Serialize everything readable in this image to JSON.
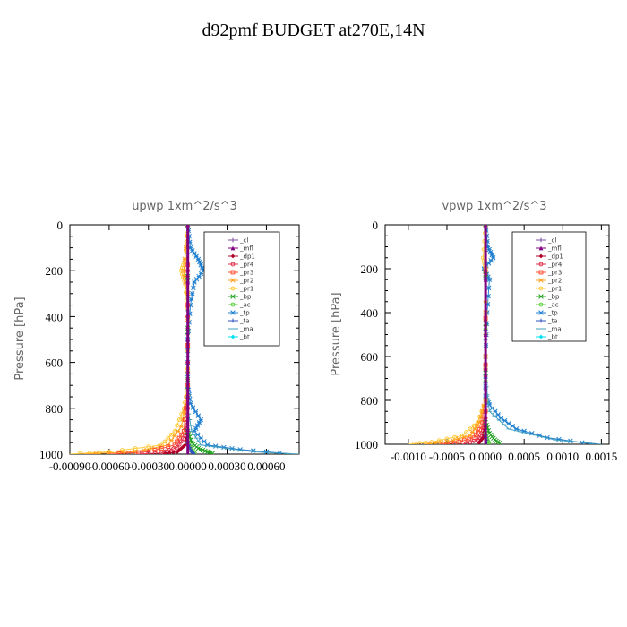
{
  "figure_title": "d92pmf  BUDGET at270E,14N",
  "legend_entries": [
    {
      "name": "_cl",
      "color": "#7b4fa0",
      "marker": "plus"
    },
    {
      "name": "_mfl",
      "color": "#800080",
      "marker": "triangle"
    },
    {
      "name": "_dp1",
      "color": "#b0002a",
      "marker": "diamond"
    },
    {
      "name": "_pr4",
      "color": "#e0304a",
      "marker": "circle"
    },
    {
      "name": "_pr3",
      "color": "#ff5030",
      "marker": "square"
    },
    {
      "name": "_pr2",
      "color": "#ffa020",
      "marker": "star"
    },
    {
      "name": "_pr1",
      "color": "#ffcc40",
      "marker": "circle"
    },
    {
      "name": "_bp",
      "color": "#20a020",
      "marker": "x"
    },
    {
      "name": "_ac",
      "color": "#60d040",
      "marker": "circle"
    },
    {
      "name": "_tp",
      "color": "#2080d0",
      "marker": "star"
    },
    {
      "name": "_ta",
      "color": "#3050c0",
      "marker": "plus"
    },
    {
      "name": "_ma",
      "color": "#40a0c0",
      "marker": "dash"
    },
    {
      "name": "_bt",
      "color": "#00e0f0",
      "marker": "diamond"
    }
  ],
  "chart_data": [
    {
      "type": "line",
      "title": "upwp   1xm^2/s^3",
      "ylabel": "Pressure  [hPa]",
      "xlabel": "",
      "ylim": [
        1000,
        0
      ],
      "xlim": [
        -0.0009,
        0.00085
      ],
      "y_ticks": [
        0,
        200,
        400,
        600,
        800,
        1000
      ],
      "x_ticks": [
        -0.0009,
        -0.0006,
        -0.0003,
        0.0,
        0.0003,
        0.0006
      ],
      "x_tick_labels": [
        "-0.00090",
        "-0.00060",
        "-0.00030",
        "0.00000",
        "0.00030",
        "0.00060"
      ],
      "legend_position": "top-right",
      "series": [
        {
          "name": "_tp",
          "points": [
            [
              0,
              0
            ],
            [
              2e-05,
              100
            ],
            [
              8e-05,
              150
            ],
            [
              0.00012,
              200
            ],
            [
              5e-05,
              250
            ],
            [
              2e-05,
              350
            ],
            [
              0,
              500
            ],
            [
              0,
              700
            ],
            [
              2e-05,
              780
            ],
            [
              0.0001,
              850
            ],
            [
              5e-05,
              900
            ],
            [
              0.00015,
              960
            ],
            [
              0.0004,
              980
            ],
            [
              0.0008,
              1000
            ]
          ]
        },
        {
          "name": "_ma",
          "points": [
            [
              0,
              0
            ],
            [
              0,
              500
            ],
            [
              0,
              800
            ],
            [
              3e-05,
              900
            ],
            [
              0.0001,
              960
            ],
            [
              0.0005,
              990
            ],
            [
              0.00085,
              1000
            ]
          ]
        },
        {
          "name": "_pr1",
          "points": [
            [
              0,
              0
            ],
            [
              -2e-05,
              150
            ],
            [
              -5e-05,
              200
            ],
            [
              -2e-05,
              260
            ],
            [
              0,
              400
            ],
            [
              0,
              700
            ],
            [
              -3e-05,
              800
            ],
            [
              -0.0001,
              900
            ],
            [
              -0.0002,
              960
            ],
            [
              -0.0006,
              990
            ],
            [
              -0.0009,
              1000
            ]
          ]
        },
        {
          "name": "_pr2",
          "points": [
            [
              0,
              0
            ],
            [
              -3e-05,
              200
            ],
            [
              0,
              300
            ],
            [
              0,
              750
            ],
            [
              -5e-05,
              880
            ],
            [
              -0.00015,
              960
            ],
            [
              -0.0004,
              990
            ],
            [
              -0.0008,
              1000
            ]
          ]
        },
        {
          "name": "_pr3",
          "points": [
            [
              0,
              0
            ],
            [
              0,
              700
            ],
            [
              -3e-05,
              900
            ],
            [
              -0.0001,
              960
            ],
            [
              -0.0003,
              990
            ],
            [
              -0.0006,
              1000
            ]
          ]
        },
        {
          "name": "_pr4",
          "points": [
            [
              0,
              0
            ],
            [
              0,
              800
            ],
            [
              -2e-05,
              920
            ],
            [
              -8e-05,
              970
            ],
            [
              -0.0002,
              995
            ],
            [
              -0.0004,
              1000
            ]
          ]
        },
        {
          "name": "_dp1",
          "points": [
            [
              0,
              0
            ],
            [
              0,
              900
            ],
            [
              -2e-05,
              960
            ],
            [
              -8e-05,
              990
            ],
            [
              -0.0002,
              1000
            ]
          ]
        },
        {
          "name": "_bp",
          "points": [
            [
              0,
              0
            ],
            [
              0,
              900
            ],
            [
              3e-05,
              950
            ],
            [
              8e-05,
              975
            ],
            [
              0.00015,
              990
            ],
            [
              0.0002,
              1000
            ]
          ]
        },
        {
          "name": "_ac",
          "points": [
            [
              0,
              0
            ],
            [
              0,
              950
            ],
            [
              3e-05,
              980
            ],
            [
              6e-05,
              1000
            ]
          ]
        },
        {
          "name": "_ta",
          "points": [
            [
              0,
              0
            ],
            [
              0,
              950
            ],
            [
              3e-05,
              990
            ],
            [
              5e-05,
              1000
            ]
          ]
        },
        {
          "name": "_bt",
          "points": [
            [
              0,
              0
            ],
            [
              0,
              1000
            ]
          ]
        },
        {
          "name": "_cl",
          "points": [
            [
              0,
              0
            ],
            [
              0,
              1000
            ]
          ]
        },
        {
          "name": "_mfl",
          "points": [
            [
              0,
              0
            ],
            [
              0,
              1000
            ]
          ]
        }
      ]
    },
    {
      "type": "line",
      "title": "vpwp   1xm^2/s^3",
      "ylabel": "Pressure  [hPa]",
      "xlabel": "",
      "ylim": [
        1000,
        0
      ],
      "xlim": [
        -0.0013,
        0.0016
      ],
      "y_ticks": [
        0,
        200,
        400,
        600,
        800,
        1000
      ],
      "x_ticks": [
        -0.001,
        -0.0005,
        0.0,
        0.0005,
        0.001,
        0.0015
      ],
      "x_tick_labels": [
        "-0.0010",
        "-0.0005",
        "0.0000",
        "0.0005",
        "0.0010",
        "0.0015"
      ],
      "legend_position": "top-right",
      "series": [
        {
          "name": "_tp",
          "points": [
            [
              0,
              0
            ],
            [
              3e-05,
              100
            ],
            [
              0.0001,
              150
            ],
            [
              -2e-05,
              200
            ],
            [
              5e-05,
              250
            ],
            [
              2e-05,
              400
            ],
            [
              0,
              600
            ],
            [
              0,
              780
            ],
            [
              5e-05,
              820
            ],
            [
              0.0002,
              880
            ],
            [
              0.0004,
              930
            ],
            [
              0.0008,
              970
            ],
            [
              0.0014,
              1000
            ]
          ]
        },
        {
          "name": "_ma",
          "points": [
            [
              0,
              0
            ],
            [
              0,
              700
            ],
            [
              5e-05,
              850
            ],
            [
              0.0003,
              930
            ],
            [
              0.0009,
              980
            ],
            [
              0.0015,
              1000
            ]
          ]
        },
        {
          "name": "_pr1",
          "points": [
            [
              0,
              0
            ],
            [
              -3e-05,
              150
            ],
            [
              0,
              200
            ],
            [
              0,
              800
            ],
            [
              -0.0001,
              900
            ],
            [
              -0.0003,
              960
            ],
            [
              -0.0007,
              990
            ],
            [
              -0.001,
              1000
            ]
          ]
        },
        {
          "name": "_pr2",
          "points": [
            [
              0,
              0
            ],
            [
              0,
              800
            ],
            [
              -8e-05,
              900
            ],
            [
              -0.0002,
              960
            ],
            [
              -0.0005,
              990
            ],
            [
              -0.0008,
              1000
            ]
          ]
        },
        {
          "name": "_pr3",
          "points": [
            [
              0,
              0
            ],
            [
              0,
              850
            ],
            [
              -5e-05,
              920
            ],
            [
              -0.00015,
              970
            ],
            [
              -0.0004,
              995
            ],
            [
              -0.0006,
              1000
            ]
          ]
        },
        {
          "name": "_pr4",
          "points": [
            [
              0,
              0
            ],
            [
              0,
              880
            ],
            [
              -3e-05,
              940
            ],
            [
              -0.0001,
              980
            ],
            [
              -0.0003,
              1000
            ]
          ]
        },
        {
          "name": "_dp1",
          "points": [
            [
              0,
              0
            ],
            [
              0,
              920
            ],
            [
              -3e-05,
              970
            ],
            [
              -0.0001,
              1000
            ]
          ]
        },
        {
          "name": "_bp",
          "points": [
            [
              0,
              0
            ],
            [
              0,
              900
            ],
            [
              5e-05,
              950
            ],
            [
              0.00012,
              980
            ],
            [
              0.0002,
              1000
            ]
          ]
        },
        {
          "name": "_ac",
          "points": [
            [
              0,
              0
            ],
            [
              0,
              950
            ],
            [
              3e-05,
              985
            ],
            [
              5e-05,
              1000
            ]
          ]
        },
        {
          "name": "_ta",
          "points": [
            [
              0,
              0
            ],
            [
              0,
              960
            ],
            [
              2e-05,
              1000
            ]
          ]
        },
        {
          "name": "_bt",
          "points": [
            [
              0,
              0
            ],
            [
              0,
              1000
            ]
          ]
        },
        {
          "name": "_cl",
          "points": [
            [
              0,
              0
            ],
            [
              0,
              1000
            ]
          ]
        },
        {
          "name": "_mfl",
          "points": [
            [
              0,
              0
            ],
            [
              0,
              1000
            ]
          ]
        }
      ]
    }
  ]
}
